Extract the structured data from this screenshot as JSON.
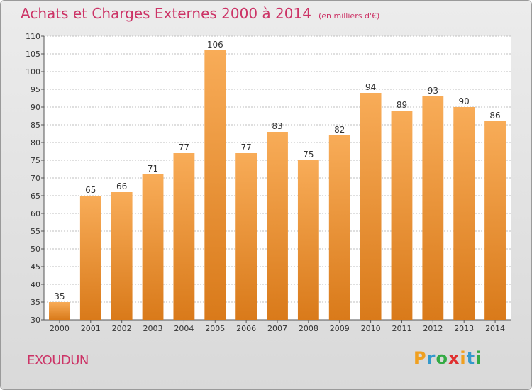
{
  "header": {
    "title": "Achats et Charges Externes 2000 à 2014",
    "unit": "(en milliers d'€)"
  },
  "footer": {
    "place": "EXOUDUN",
    "logo_letters": [
      "P",
      "r",
      "o",
      "x",
      "i",
      "t",
      "i"
    ],
    "logo_colors": [
      "#f0a020",
      "#3399cc",
      "#33aa44",
      "#e03030",
      "#f0a020",
      "#3399cc",
      "#33aa44"
    ]
  },
  "colors": {
    "title": "#cc3366",
    "bar_light": "#f8ac58",
    "bar_dark": "#d97a1a",
    "grid": "#bfbfbf"
  },
  "chart_data": {
    "type": "bar",
    "categories": [
      "2000",
      "2001",
      "2002",
      "2003",
      "2004",
      "2005",
      "2006",
      "2007",
      "2008",
      "2009",
      "2010",
      "2011",
      "2012",
      "2013",
      "2014"
    ],
    "values": [
      35,
      65,
      66,
      71,
      77,
      106,
      77,
      83,
      75,
      82,
      94,
      89,
      93,
      90,
      86
    ],
    "ylim": [
      30,
      110
    ],
    "yticks": [
      30,
      35,
      40,
      45,
      50,
      55,
      60,
      65,
      70,
      75,
      80,
      85,
      90,
      95,
      100,
      105,
      110
    ],
    "grid": true,
    "data_labels": true
  }
}
